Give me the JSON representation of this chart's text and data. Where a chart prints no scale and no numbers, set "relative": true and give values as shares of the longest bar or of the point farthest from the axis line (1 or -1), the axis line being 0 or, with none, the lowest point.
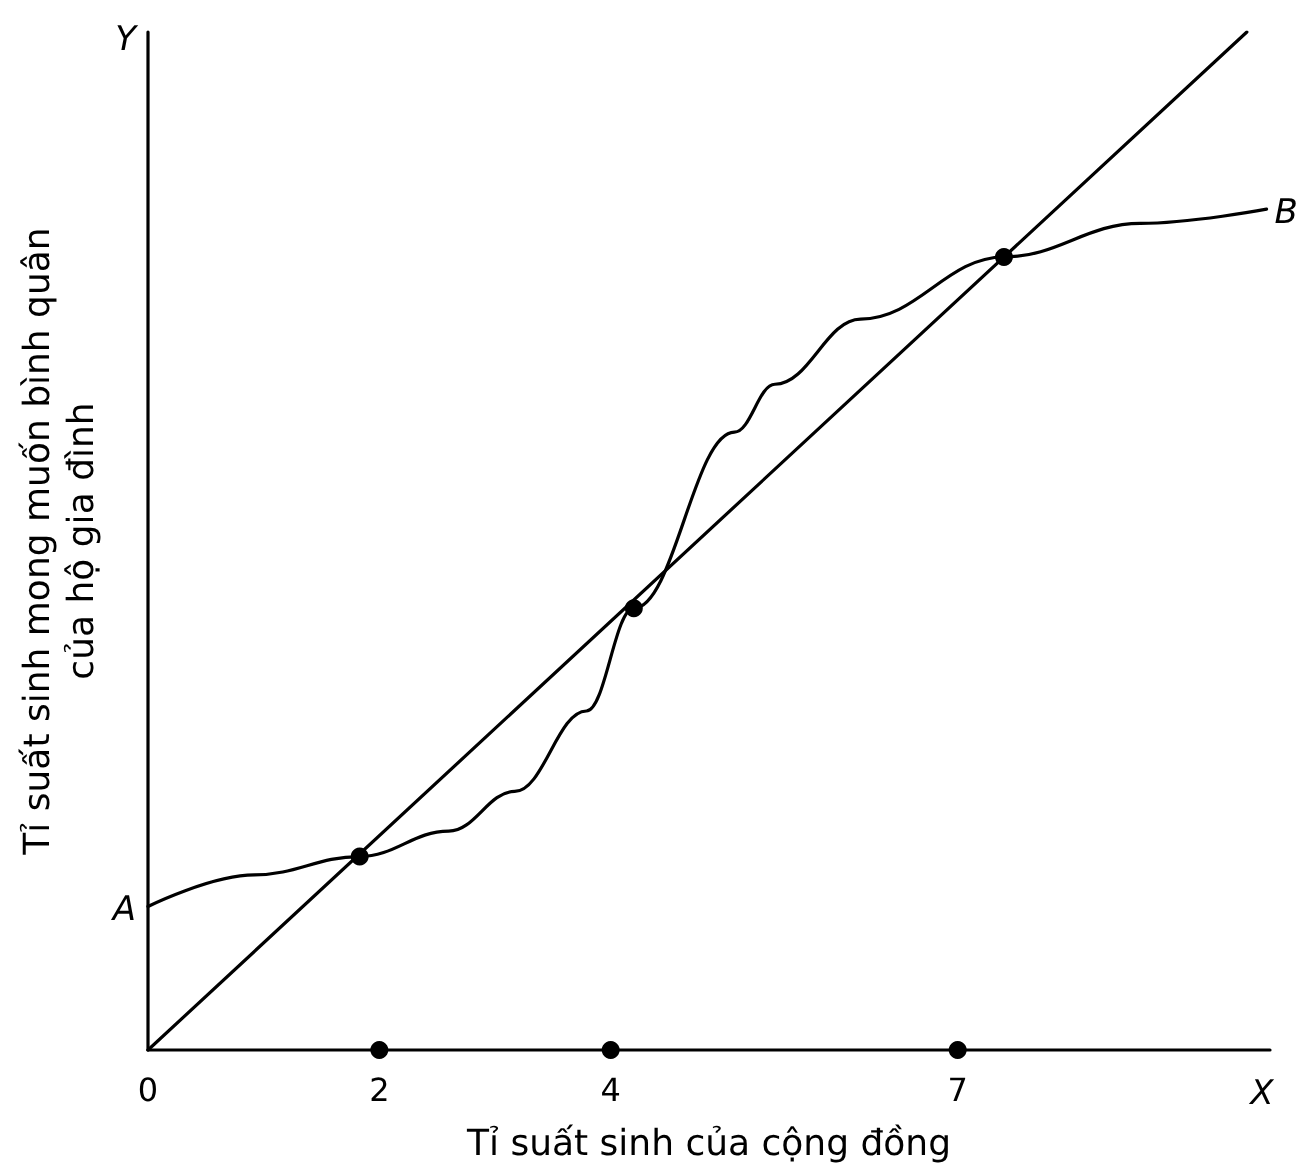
{
  "chart_data": {
    "type": "line",
    "relative": true,
    "xlabel": "Tỉ suất sinh của cộng đồng",
    "ylabel": "Tỉ suất sinh mong muốn bình quân\ncủa hộ gia đình",
    "xlim": [
      0,
      9.7
    ],
    "xticks": [
      0,
      2,
      4,
      7
    ],
    "grid": false,
    "marker": "none",
    "line_style": "solid",
    "series": [
      {
        "color": "#000000",
        "x": [
          0,
          0.92,
          1.83,
          2.6,
          3.17,
          3.79,
          4.2,
          5.07,
          5.42,
          6.16,
          7.4,
          8.58,
          9.67
        ],
        "values": [
          0.141,
          0.172,
          0.19,
          0.215,
          0.254,
          0.333,
          0.434,
          0.607,
          0.654,
          0.718,
          0.779,
          0.812,
          0.826
        ]
      },
      {
        "color": "#000000",
        "x": [
          0,
          9.5
        ],
        "values": [
          0,
          1
        ]
      },
      {
        "type": "scatter",
        "marker": "circle",
        "color": "#000000",
        "x": [
          1.83,
          4.2,
          7.4
        ],
        "values": [
          0.19,
          0.434,
          0.779
        ]
      },
      {
        "type": "scatter",
        "marker": "circle",
        "color": "#000000",
        "x": [
          2,
          4,
          7
        ],
        "values": [
          0,
          0,
          0
        ]
      }
    ],
    "annotations": [
      {
        "text": "A",
        "x": 0,
        "y": 0.141
      },
      {
        "text": "B",
        "x": 9.67,
        "y": 0.826
      },
      "X",
      "Y"
    ]
  }
}
